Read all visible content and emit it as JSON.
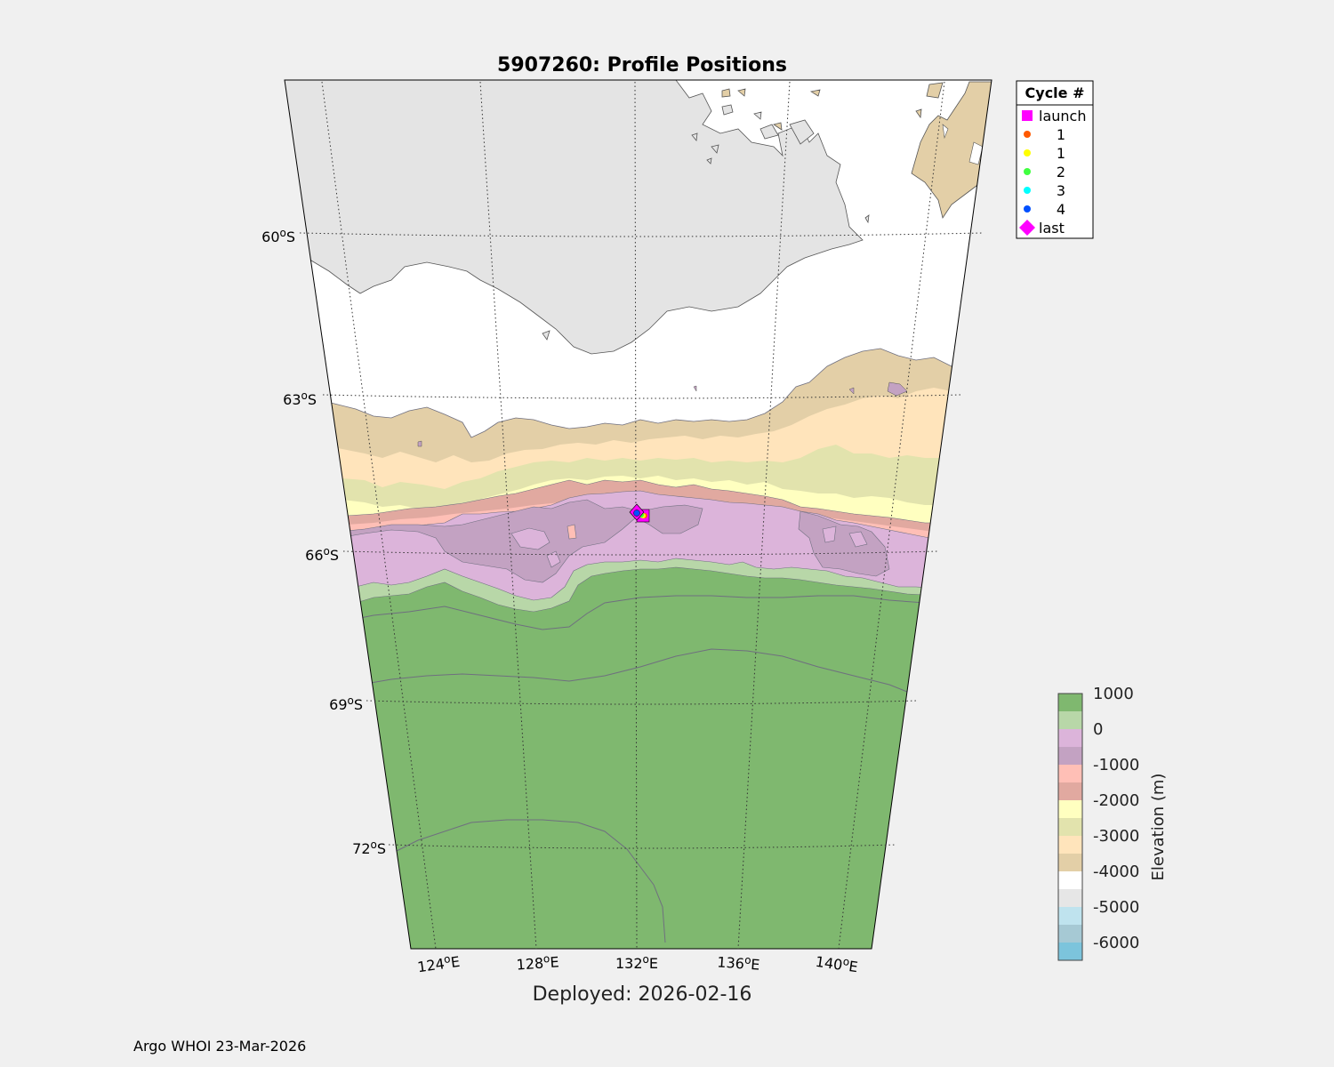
{
  "title": "5907260: Profile Positions",
  "xlabel": "Deployed: 2026-02-16",
  "footer": "Argo WHOI 23-Mar-2026",
  "lat_labels": [
    {
      "deg": "60",
      "hemi": "S"
    },
    {
      "deg": "63",
      "hemi": "S"
    },
    {
      "deg": "66",
      "hemi": "S"
    },
    {
      "deg": "69",
      "hemi": "S"
    },
    {
      "deg": "72",
      "hemi": "S"
    }
  ],
  "lon_labels": [
    {
      "deg": "124",
      "hemi": "E"
    },
    {
      "deg": "128",
      "hemi": "E"
    },
    {
      "deg": "132",
      "hemi": "E"
    },
    {
      "deg": "136",
      "hemi": "E"
    },
    {
      "deg": "140",
      "hemi": "E"
    }
  ],
  "legend": {
    "title": "Cycle #",
    "entries": [
      {
        "label": "launch",
        "color": "#ff00ff",
        "marker": "square"
      },
      {
        "label": "1",
        "color": "#ff5a00",
        "marker": "dot"
      },
      {
        "label": "1",
        "color": "#ffff00",
        "marker": "dot"
      },
      {
        "label": "2",
        "color": "#40ff40",
        "marker": "dot"
      },
      {
        "label": "3",
        "color": "#00ffff",
        "marker": "dot"
      },
      {
        "label": "4",
        "color": "#0050ff",
        "marker": "dot"
      },
      {
        "label": "last",
        "color": "#ff00ff",
        "marker": "diamond"
      }
    ]
  },
  "colorbar": {
    "label": "Elevation (m)",
    "ticks": [
      "1000",
      "0",
      "-1000",
      "-2000",
      "-3000",
      "-4000",
      "-5000",
      "-6000"
    ],
    "colors": [
      "#7fb86f",
      "#b8d7a8",
      "#dcb4da",
      "#c3a2c2",
      "#ffbfb6",
      "#e1a9a0",
      "#ffffc0",
      "#e2e3ad",
      "#ffe4bb",
      "#e3cfa7",
      "#ffffff",
      "#e6e6e6",
      "#bfe3ee",
      "#a6c9d4",
      "#7cc4dc"
    ]
  },
  "colors": {
    "background": "#f0f0f0",
    "land_gray": "#e4e4e4"
  },
  "chart_data": {
    "type": "map",
    "region": "Southern Ocean south of Australia",
    "lat_range": [
      -74,
      -57
    ],
    "lon_range": [
      122,
      142
    ],
    "float_id": "5907260",
    "profiles": [
      {
        "cycle": "launch",
        "lat": -65.35,
        "lon": 132.4
      },
      {
        "cycle": "1",
        "lat": -65.33,
        "lon": 132.3
      },
      {
        "cycle": "1",
        "lat": -65.33,
        "lon": 132.35
      },
      {
        "cycle": "2",
        "lat": -65.32,
        "lon": 132.25
      },
      {
        "cycle": "3",
        "lat": -65.3,
        "lon": 132.1
      },
      {
        "cycle": "4",
        "lat": -65.28,
        "lon": 132.0
      },
      {
        "cycle": "last",
        "lat": -65.28,
        "lon": 132.0
      }
    ]
  }
}
